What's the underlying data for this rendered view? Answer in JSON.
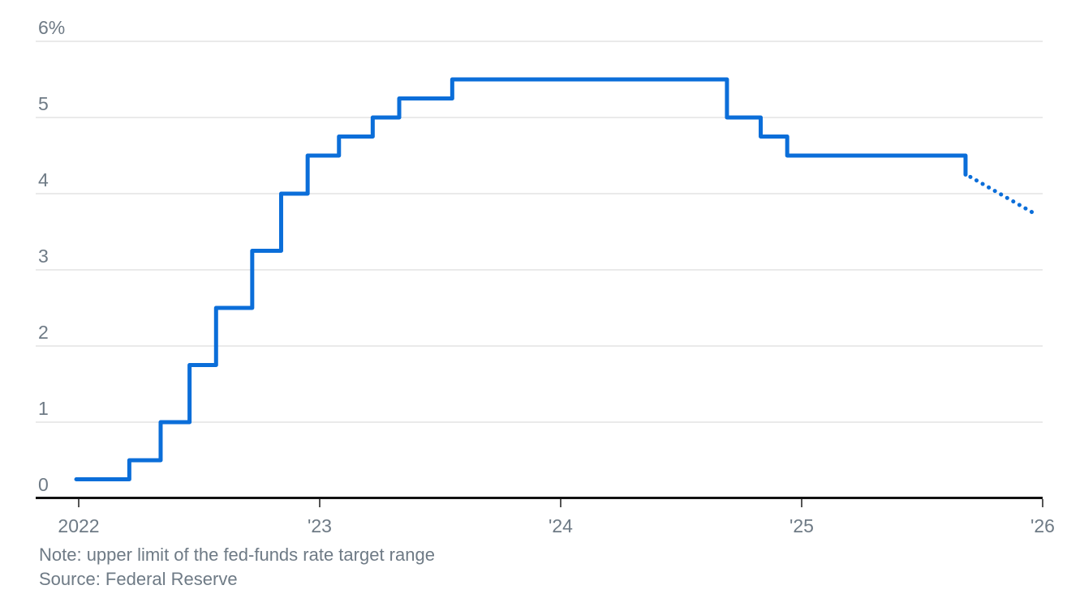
{
  "chart_data": {
    "type": "line",
    "subtype": "step",
    "title": "",
    "xlabel": "",
    "ylabel": "",
    "unit": "%",
    "ylim": [
      0,
      6
    ],
    "xlim": [
      2021.82,
      2026
    ],
    "grid": "horizontal",
    "legend": "none",
    "y_ticks": [
      {
        "v": 0,
        "label": "0"
      },
      {
        "v": 1,
        "label": "1"
      },
      {
        "v": 2,
        "label": "2"
      },
      {
        "v": 3,
        "label": "3"
      },
      {
        "v": 4,
        "label": "4"
      },
      {
        "v": 5,
        "label": "5"
      },
      {
        "v": 6,
        "label": "6%"
      }
    ],
    "x_ticks": [
      {
        "v": 2022,
        "label": "2022"
      },
      {
        "v": 2023,
        "label": "'23"
      },
      {
        "v": 2024,
        "label": "'24"
      },
      {
        "v": 2025,
        "label": "'25"
      },
      {
        "v": 2026,
        "label": "'26"
      }
    ],
    "series": [
      {
        "name": "Fed-funds rate target upper limit",
        "line_style": "solid",
        "step": true,
        "points": [
          [
            2021.99,
            0.25
          ],
          [
            2022.21,
            0.5
          ],
          [
            2022.34,
            1.0
          ],
          [
            2022.46,
            1.75
          ],
          [
            2022.57,
            2.5
          ],
          [
            2022.72,
            3.25
          ],
          [
            2022.84,
            4.0
          ],
          [
            2022.95,
            4.5
          ],
          [
            2023.08,
            4.75
          ],
          [
            2023.22,
            5.0
          ],
          [
            2023.33,
            5.25
          ],
          [
            2023.55,
            5.5
          ],
          [
            2024.69,
            5.0
          ],
          [
            2024.83,
            4.75
          ],
          [
            2024.94,
            4.5
          ],
          [
            2025.68,
            4.25
          ]
        ]
      },
      {
        "name": "Projection",
        "line_style": "dotted",
        "step": false,
        "points": [
          [
            2025.7,
            4.22
          ],
          [
            2025.96,
            3.75
          ]
        ]
      }
    ],
    "note": "Note: upper limit of the fed-funds rate target range",
    "source": "Source: Federal Reserve",
    "colors": {
      "line": "#0b6ed9",
      "grid": "#e4e4e4",
      "axis": "#111111",
      "tick": "#555555",
      "text": "#6e7a85"
    }
  }
}
